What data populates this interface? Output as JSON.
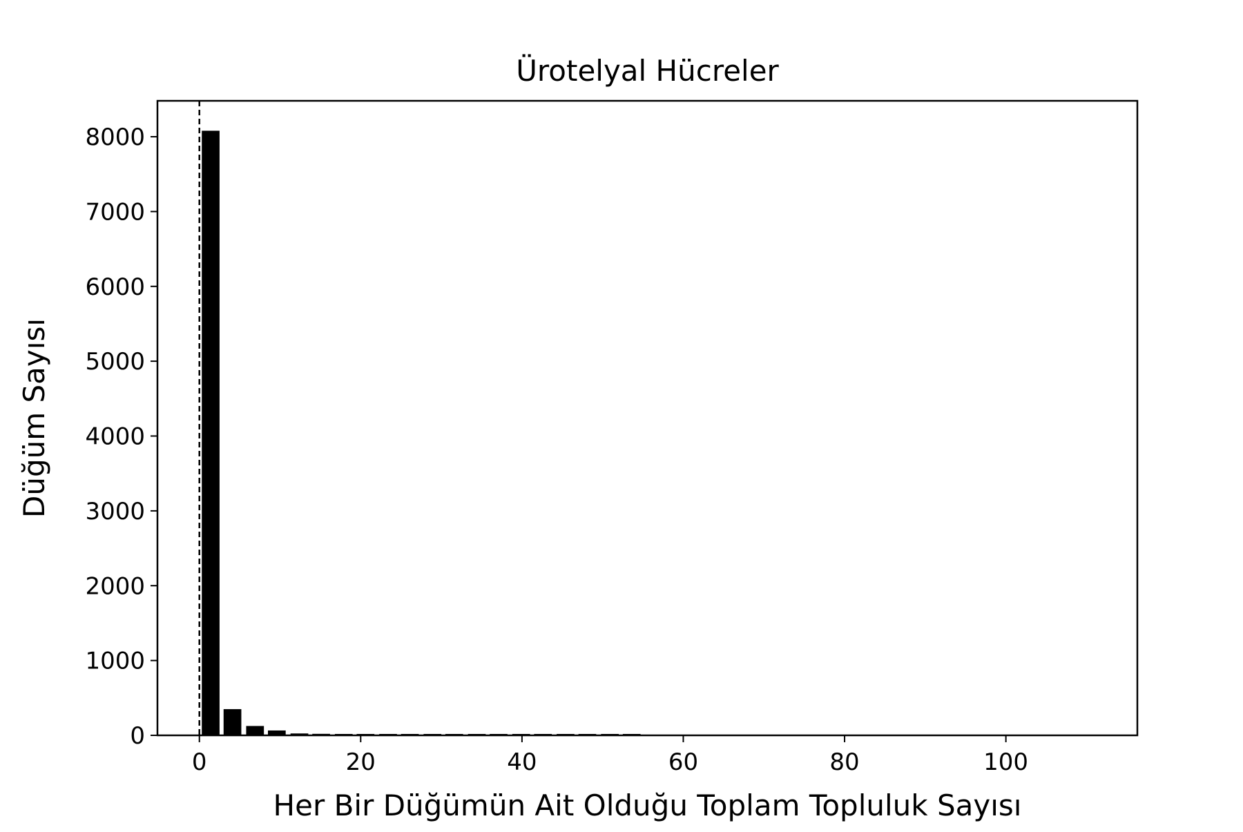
{
  "chart_data": {
    "type": "bar",
    "title": "Ürotelyal Hücreler",
    "xlabel": "Her Bir Düğümün Ait Olduğu Toplam Topluluk Sayısı",
    "ylabel": "Düğüm Sayısı",
    "xlim": [
      -5.2,
      116.3
    ],
    "ylim": [
      0,
      8480
    ],
    "xticks": [
      0,
      20,
      40,
      60,
      80,
      100
    ],
    "yticks": [
      0,
      1000,
      2000,
      3000,
      4000,
      5000,
      6000,
      7000,
      8000
    ],
    "bin_width": 2.75,
    "bars": [
      {
        "x": 1.4,
        "value": 8080
      },
      {
        "x": 4.1,
        "value": 350
      },
      {
        "x": 6.9,
        "value": 125
      },
      {
        "x": 9.6,
        "value": 65
      },
      {
        "x": 12.4,
        "value": 25
      },
      {
        "x": 15.1,
        "value": 20
      },
      {
        "x": 17.9,
        "value": 18
      },
      {
        "x": 20.6,
        "value": 15
      },
      {
        "x": 23.4,
        "value": 5
      },
      {
        "x": 26.1,
        "value": 10
      },
      {
        "x": 28.9,
        "value": 10
      },
      {
        "x": 31.6,
        "value": 3
      },
      {
        "x": 34.4,
        "value": 3
      },
      {
        "x": 37.1,
        "value": 3
      },
      {
        "x": 39.9,
        "value": 12
      },
      {
        "x": 42.6,
        "value": 12
      },
      {
        "x": 45.4,
        "value": 8
      },
      {
        "x": 48.1,
        "value": 3
      },
      {
        "x": 50.9,
        "value": 3
      },
      {
        "x": 53.6,
        "value": 8
      }
    ],
    "reference_line": {
      "x": 0,
      "style": "dashed"
    },
    "bar_color": "#000000",
    "grid": false,
    "legend": "none"
  }
}
